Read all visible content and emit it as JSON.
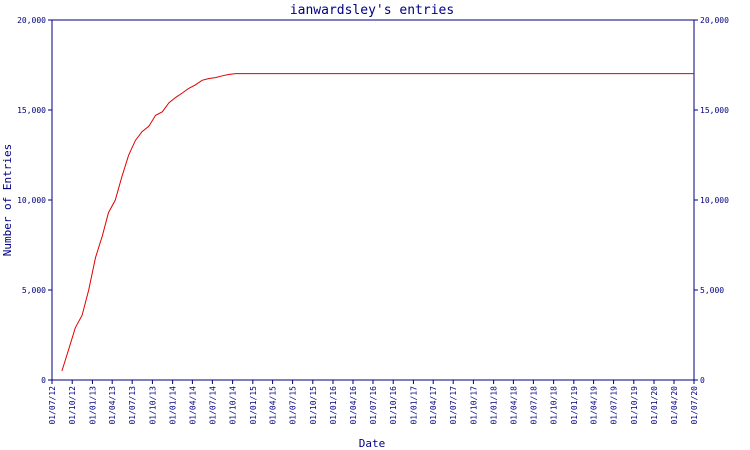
{
  "chart_data": {
    "type": "line",
    "title": "ianwardsley's entries",
    "xlabel": "Date",
    "ylabel": "Number of Entries",
    "ylim": [
      0,
      20000
    ],
    "y_ticks": [
      0,
      5000,
      10000,
      15000,
      20000
    ],
    "y_tick_labels": [
      "0",
      "5,000",
      "10,000",
      "15,000",
      "20,000"
    ],
    "x_tick_labels": [
      "01/07/12",
      "01/10/12",
      "01/01/13",
      "01/04/13",
      "01/07/13",
      "01/10/13",
      "01/01/14",
      "01/04/14",
      "01/07/14",
      "01/10/14",
      "01/01/15",
      "01/04/15",
      "01/07/15",
      "01/10/15",
      "01/01/16",
      "01/04/16",
      "01/07/16",
      "01/10/16",
      "01/01/17",
      "01/04/17",
      "01/07/17",
      "01/10/17",
      "01/01/18",
      "01/04/18",
      "01/07/18",
      "01/10/18",
      "01/01/19",
      "01/04/19",
      "01/07/19",
      "01/10/19",
      "01/01/20",
      "01/04/20",
      "01/07/20"
    ],
    "grid": false,
    "series": [
      {
        "color": "#e00000",
        "points": [
          [
            "2012-08-15",
            500
          ],
          [
            "2012-09-15",
            1700
          ],
          [
            "2012-10-15",
            2900
          ],
          [
            "2012-11-15",
            3600
          ],
          [
            "2012-12-15",
            5000
          ],
          [
            "2013-01-15",
            6800
          ],
          [
            "2013-02-15",
            8000
          ],
          [
            "2013-03-15",
            9300
          ],
          [
            "2013-04-15",
            10000
          ],
          [
            "2013-05-15",
            11300
          ],
          [
            "2013-06-15",
            12500
          ],
          [
            "2013-07-15",
            13300
          ],
          [
            "2013-08-15",
            13800
          ],
          [
            "2013-09-15",
            14100
          ],
          [
            "2013-10-15",
            14700
          ],
          [
            "2013-11-15",
            14900
          ],
          [
            "2013-12-15",
            15400
          ],
          [
            "2014-01-15",
            15700
          ],
          [
            "2014-02-15",
            15950
          ],
          [
            "2014-03-15",
            16200
          ],
          [
            "2014-04-15",
            16400
          ],
          [
            "2014-05-15",
            16650
          ],
          [
            "2014-06-15",
            16750
          ],
          [
            "2014-07-15",
            16800
          ],
          [
            "2014-08-15",
            16900
          ],
          [
            "2014-09-15",
            16980
          ],
          [
            "2014-10-15",
            17020
          ],
          [
            "2015-01-15",
            17020
          ],
          [
            "2016-01-15",
            17020
          ],
          [
            "2017-01-15",
            17020
          ],
          [
            "2018-01-15",
            17020
          ],
          [
            "2019-01-15",
            17020
          ],
          [
            "2020-01-15",
            17020
          ],
          [
            "2020-07-01",
            17020
          ]
        ]
      }
    ]
  }
}
